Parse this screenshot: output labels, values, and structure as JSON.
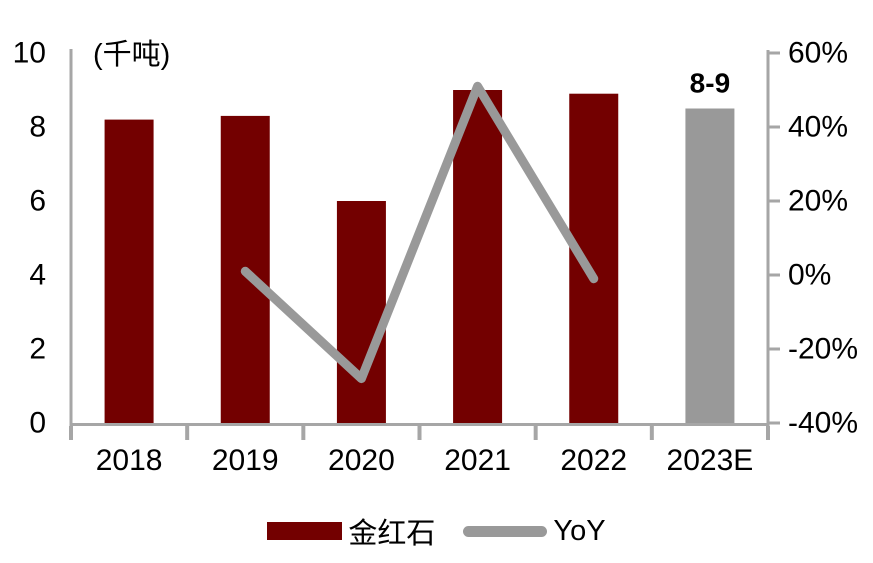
{
  "chart_data": {
    "type": "combo-bar-line",
    "title": "",
    "unit_label": "(千吨)",
    "categories": [
      "2018",
      "2019",
      "2020",
      "2021",
      "2022",
      "2023E"
    ],
    "series": [
      {
        "name": "金红石",
        "type": "bar",
        "axis": "left",
        "color": "#730000",
        "values": [
          8.2,
          8.3,
          6.0,
          9.0,
          8.9,
          8.5
        ],
        "estimate": {
          "index": 5,
          "color": "#999999",
          "label": "8-9"
        }
      },
      {
        "name": "YoY",
        "type": "line",
        "axis": "right",
        "color": "#999999",
        "values": [
          null,
          1,
          -28,
          51,
          -1,
          null
        ]
      }
    ],
    "left_axis": {
      "min": 0,
      "max": 10,
      "step": 2,
      "ticks": [
        0,
        2,
        4,
        6,
        8,
        10
      ],
      "unit": "千吨"
    },
    "right_axis": {
      "min": -40,
      "max": 60,
      "step": 20,
      "ticks": [
        -40,
        -20,
        0,
        20,
        40,
        60
      ],
      "unit": "%"
    },
    "axis_color": "#a6a6a6",
    "grid": false,
    "legend_position": "bottom"
  }
}
